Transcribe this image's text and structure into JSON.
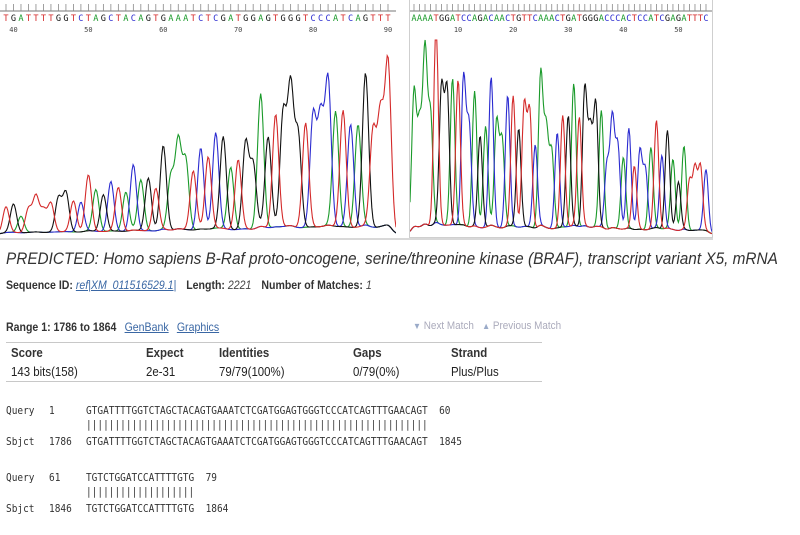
{
  "left_trace": {
    "bases": "TGATTTTGGTCTAGCTACAGTGAAATCTCGATGGAGTGGGTCCCATCAGTTT",
    "tick_labels": [
      "40",
      "50",
      "60",
      "70",
      "80",
      "90"
    ]
  },
  "right_trace": {
    "bases": "AAAATGGATCCAGACAACTGTTCAAACTGATGGGACCCACTCCATCGAGATTTC",
    "tick_labels": [
      "10",
      "20",
      "30",
      "40",
      "50"
    ]
  },
  "hit": {
    "title": "PREDICTED: Homo sapiens B-Raf proto-oncogene, serine/threonine kinase (BRAF), transcript variant X5, mRNA",
    "seq_id_label": "Sequence ID:",
    "seq_id": "ref|XM_011516529.1|",
    "length_label": "Length:",
    "length": "2221",
    "matches_label": "Number of Matches:",
    "matches": "1"
  },
  "range": {
    "label": "Range 1: 1786 to 1864",
    "genbank": "GenBank",
    "graphics": "Graphics",
    "next": "Next Match",
    "previous": "Previous Match"
  },
  "stats": {
    "headers": [
      "Score",
      "Expect",
      "Identities",
      "Gaps",
      "Strand"
    ],
    "values": [
      "143 bits(158)",
      "2e-31",
      "79/79(100%)",
      "0/79(0%)",
      "Plus/Plus"
    ]
  },
  "alignment": [
    {
      "q_label": "Query",
      "q_start": "1",
      "q_seq": "GTGATTTTGGTCTAGCTACAGTGAAATCTCGATGGAGTGGGTCCCATCAGTTTGAACAGT",
      "q_end": "60",
      "bars": "||||||||||||||||||||||||||||||||||||||||||||||||||||||||||||",
      "s_label": "Sbjct",
      "s_start": "1786",
      "s_seq": "GTGATTTTGGTCTAGCTACAGTGAAATCTCGATGGAGTGGGTCCCATCAGTTTGAACAGT",
      "s_end": "1845"
    },
    {
      "q_label": "Query",
      "q_start": "61",
      "q_seq": "TGTCTGGATCCATTTTGTG",
      "q_end": "79",
      "bars": "|||||||||||||||||||",
      "s_label": "Sbjct",
      "s_start": "1846",
      "s_seq": "TGTCTGGATCCATTTTGTG",
      "s_end": "1864"
    }
  ],
  "colors": {
    "A": "#1a9a2a",
    "C": "#2b2bd0",
    "G": "#111111",
    "T": "#d42a2a",
    "link": "#3a67a4"
  }
}
